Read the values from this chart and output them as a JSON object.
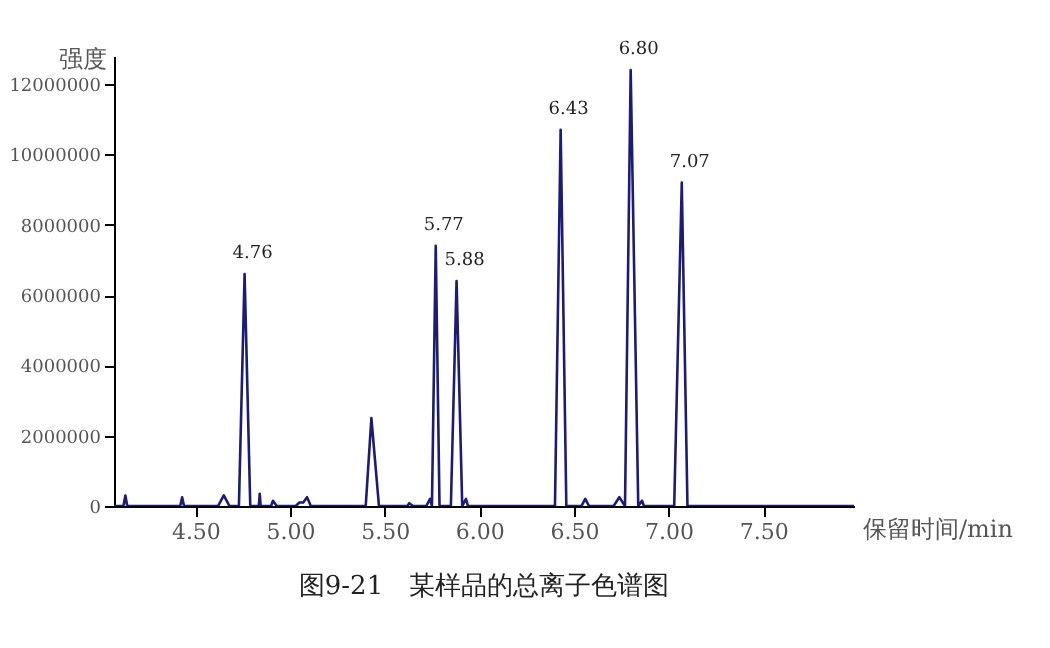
{
  "chart_data": {
    "type": "line",
    "title": "图9-21　某样品的总离子色谱图",
    "xlabel": "保留时间/min",
    "ylabel": "强度",
    "x": [
      4.07,
      4.12,
      4.13,
      4.14,
      4.42,
      4.43,
      4.44,
      4.62,
      4.65,
      4.68,
      4.73,
      4.76,
      4.79,
      4.835,
      4.84,
      4.845,
      4.9,
      4.91,
      4.93,
      5.03,
      5.05,
      5.07,
      5.09,
      5.11,
      5.4,
      5.43,
      5.47,
      5.62,
      5.63,
      5.65,
      5.72,
      5.74,
      5.75,
      5.77,
      5.79,
      5.85,
      5.88,
      5.91,
      5.93,
      5.94,
      6.4,
      6.43,
      6.46,
      6.54,
      6.56,
      6.58,
      6.71,
      6.74,
      6.77,
      6.8,
      6.84,
      6.86,
      6.87,
      7.03,
      7.07,
      7.1,
      7.98
    ],
    "series": [
      {
        "color": "#1c1c78",
        "values": [
          0,
          0,
          300000,
          0,
          0,
          250000,
          0,
          0,
          300000,
          0,
          0,
          6600000,
          0,
          0,
          350000,
          0,
          0,
          150000,
          0,
          0,
          100000,
          100000,
          250000,
          0,
          0,
          2500000,
          0,
          0,
          80000,
          0,
          0,
          200000,
          0,
          7400000,
          0,
          0,
          6400000,
          0,
          200000,
          0,
          0,
          10700000,
          0,
          0,
          200000,
          0,
          0,
          250000,
          0,
          12400000,
          0,
          150000,
          0,
          0,
          9200000,
          0,
          0
        ]
      }
    ],
    "xlim": [
      4.07,
      7.98
    ],
    "xticks": [
      {
        "value": 4.5,
        "label": "4.50"
      },
      {
        "value": 5,
        "label": "5.00"
      },
      {
        "value": 5.5,
        "label": "5.50"
      },
      {
        "value": 6,
        "label": "6.00"
      },
      {
        "value": 6.5,
        "label": "6.50"
      },
      {
        "value": 7,
        "label": "7.00"
      },
      {
        "value": 7.5,
        "label": "7.50"
      }
    ],
    "ylim": [
      0,
      12800000
    ],
    "yticks": [
      0,
      2000000,
      4000000,
      6000000,
      8000000,
      10000000,
      12000000
    ],
    "grid": false,
    "marker": "none",
    "line_style": "solid",
    "annotations": [
      {
        "text": "4.76",
        "x": 4.76,
        "y": 6600000
      },
      {
        "text": "5.77",
        "x": 5.77,
        "y": 7400000
      },
      {
        "text": "5.88",
        "x": 5.88,
        "y": 6400000
      },
      {
        "text": "6.43",
        "x": 6.43,
        "y": 10700000
      },
      {
        "text": "6.80",
        "x": 6.8,
        "y": 12400000
      },
      {
        "text": "7.07",
        "x": 7.07,
        "y": 9200000
      }
    ]
  }
}
